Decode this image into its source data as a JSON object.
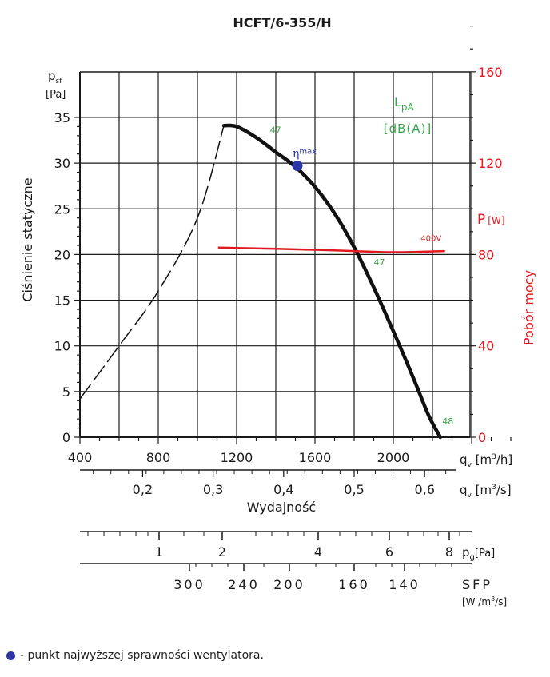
{
  "chart_data": {
    "type": "line",
    "title": "HCFT/6-355/H",
    "ylabel": "Ciśnienie statyczne",
    "y_symbol": "p",
    "y_symbol_sub": "sf",
    "y_unit": "[Pa]",
    "ylim": [
      0,
      35
    ],
    "y_ticks": [
      0,
      5,
      10,
      15,
      20,
      25,
      30,
      35
    ],
    "y2label": "Pobór mocy",
    "y2_symbol": "P",
    "y2_unit": "[W]",
    "y2lim": [
      0,
      200
    ],
    "y2_ticks": [
      0,
      40,
      80,
      120,
      160
    ],
    "xlabel": "Wydajność",
    "x_symbol": "q",
    "x_symbol_sub": "v",
    "x_unit_m3h": "[m3/h]",
    "x_unit_m3h_parts": [
      "[m",
      "3",
      "/h]"
    ],
    "x_unit_m3s_parts": [
      "[m",
      "3",
      "/s]"
    ],
    "xlim": [
      400,
      2600
    ],
    "x_ticks": [
      400,
      800,
      1200,
      1600,
      2000
    ],
    "x2_ticks": [
      {
        "label": "0,2",
        "value": 0.2
      },
      {
        "label": "0,3",
        "value": 0.3
      },
      {
        "label": "0,4",
        "value": 0.4
      },
      {
        "label": "0,5",
        "value": 0.5
      },
      {
        "label": "0,6",
        "value": 0.6
      }
    ],
    "noise_box": {
      "symbol": "L",
      "sub": "pA",
      "unit": "[dB(A)]"
    },
    "series": [
      {
        "name": "pressure",
        "color": "#111111",
        "style": "solid",
        "points": [
          [
            1135,
            34.1
          ],
          [
            1200,
            34.0
          ],
          [
            1300,
            32.8
          ],
          [
            1400,
            31.2
          ],
          [
            1500,
            29.6
          ],
          [
            1600,
            27.4
          ],
          [
            1700,
            24.5
          ],
          [
            1800,
            20.8
          ],
          [
            1900,
            16.4
          ],
          [
            2000,
            11.6
          ],
          [
            2100,
            6.6
          ],
          [
            2180,
            2.4
          ],
          [
            2240,
            0.0
          ]
        ]
      },
      {
        "name": "pressure-unstable",
        "color": "#111111",
        "style": "dashed",
        "points": [
          [
            400,
            4.2
          ],
          [
            600,
            10.0
          ],
          [
            800,
            16.0
          ],
          [
            1000,
            24.0
          ],
          [
            1135,
            34.1
          ]
        ]
      },
      {
        "name": "400V",
        "color": "#e0181f",
        "style": "solid",
        "axis": "y2",
        "points": [
          [
            1110,
            83.0
          ],
          [
            1400,
            82.5
          ],
          [
            1700,
            81.8
          ],
          [
            2000,
            81.0
          ],
          [
            2260,
            81.5
          ]
        ]
      }
    ],
    "efficiency_point": {
      "x": 1510,
      "y": 29.7,
      "label": "η",
      "label_sub": "max"
    },
    "noise_labels": [
      {
        "x": 1370,
        "y": 33.3,
        "text": "47"
      },
      {
        "x": 1900,
        "y": 18.8,
        "text": "47"
      },
      {
        "x": 2250,
        "y": 1.4,
        "text": "48"
      }
    ],
    "power_label": {
      "x": 2140,
      "y": 86.0,
      "text": "400V"
    },
    "pg_scale": {
      "symbol": "p",
      "sub": "g",
      "unit": "[Pa]",
      "ticks": [
        {
          "label": "1",
          "value": 1
        },
        {
          "label": "2",
          "value": 2
        },
        {
          "label": "4",
          "value": 4
        },
        {
          "label": "6",
          "value": 6
        },
        {
          "label": "8",
          "value": 8
        }
      ]
    },
    "sfp_scale": {
      "label": "SFP",
      "unit_parts": [
        "[W /m",
        "3",
        "/s]"
      ],
      "ticks": [
        {
          "label": "300",
          "value": 300
        },
        {
          "label": "240",
          "value": 240
        },
        {
          "label": "200",
          "value": 200
        },
        {
          "label": "160",
          "value": 160
        },
        {
          "label": "140",
          "value": 140
        }
      ]
    }
  },
  "legend": {
    "text": "- punkt najwyższej sprawności wentylatora.",
    "dot_color": "#2b35a8"
  },
  "colors": {
    "axis": "#1a1a1a",
    "grid": "#1a1a1a",
    "power": "#e0181f",
    "noise": "#3aa84a",
    "point": "#2b35a8"
  }
}
